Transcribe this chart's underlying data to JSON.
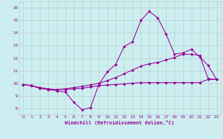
{
  "xlabel": "Windchill (Refroidissement éolien,°C)",
  "bg_color": "#cceef0",
  "line_color": "#990099",
  "grid_color": "#bbcccc",
  "xlim": [
    -0.5,
    23.5
  ],
  "ylim": [
    7.5,
    16.5
  ],
  "yticks": [
    8,
    9,
    10,
    11,
    12,
    13,
    14,
    15,
    16
  ],
  "xticks": [
    0,
    1,
    2,
    3,
    4,
    5,
    6,
    7,
    8,
    9,
    10,
    11,
    12,
    13,
    14,
    15,
    16,
    17,
    18,
    19,
    20,
    21,
    22,
    23
  ],
  "curve1_x": [
    0,
    1,
    2,
    3,
    4,
    5,
    6,
    7,
    8,
    9,
    10,
    11,
    12,
    13,
    14,
    15,
    16,
    17,
    18,
    19,
    20,
    21,
    22,
    23
  ],
  "curve1_y": [
    9.9,
    9.8,
    9.6,
    9.5,
    9.4,
    9.3,
    8.5,
    7.9,
    8.05,
    9.9,
    10.9,
    11.5,
    12.9,
    13.3,
    15.0,
    15.7,
    15.2,
    13.9,
    12.3,
    12.4,
    12.7,
    12.1,
    11.4,
    10.3
  ],
  "curve2_x": [
    0,
    1,
    2,
    3,
    4,
    5,
    6,
    7,
    8,
    9,
    10,
    11,
    12,
    13,
    14,
    15,
    16,
    17,
    18,
    19,
    20,
    21,
    22,
    23
  ],
  "curve2_y": [
    9.9,
    9.8,
    9.65,
    9.55,
    9.5,
    9.55,
    9.65,
    9.75,
    9.85,
    10.0,
    10.2,
    10.45,
    10.75,
    11.05,
    11.35,
    11.55,
    11.65,
    11.85,
    12.05,
    12.3,
    12.3,
    12.2,
    10.35,
    10.3
  ],
  "curve3_x": [
    0,
    1,
    2,
    3,
    4,
    5,
    6,
    7,
    8,
    9,
    10,
    11,
    12,
    13,
    14,
    15,
    16,
    17,
    18,
    19,
    20,
    21,
    22,
    23
  ],
  "curve3_y": [
    9.9,
    9.8,
    9.6,
    9.5,
    9.5,
    9.5,
    9.55,
    9.6,
    9.7,
    9.8,
    9.85,
    9.9,
    9.95,
    10.0,
    10.05,
    10.05,
    10.05,
    10.05,
    10.05,
    10.05,
    10.05,
    10.05,
    10.3,
    10.3
  ]
}
